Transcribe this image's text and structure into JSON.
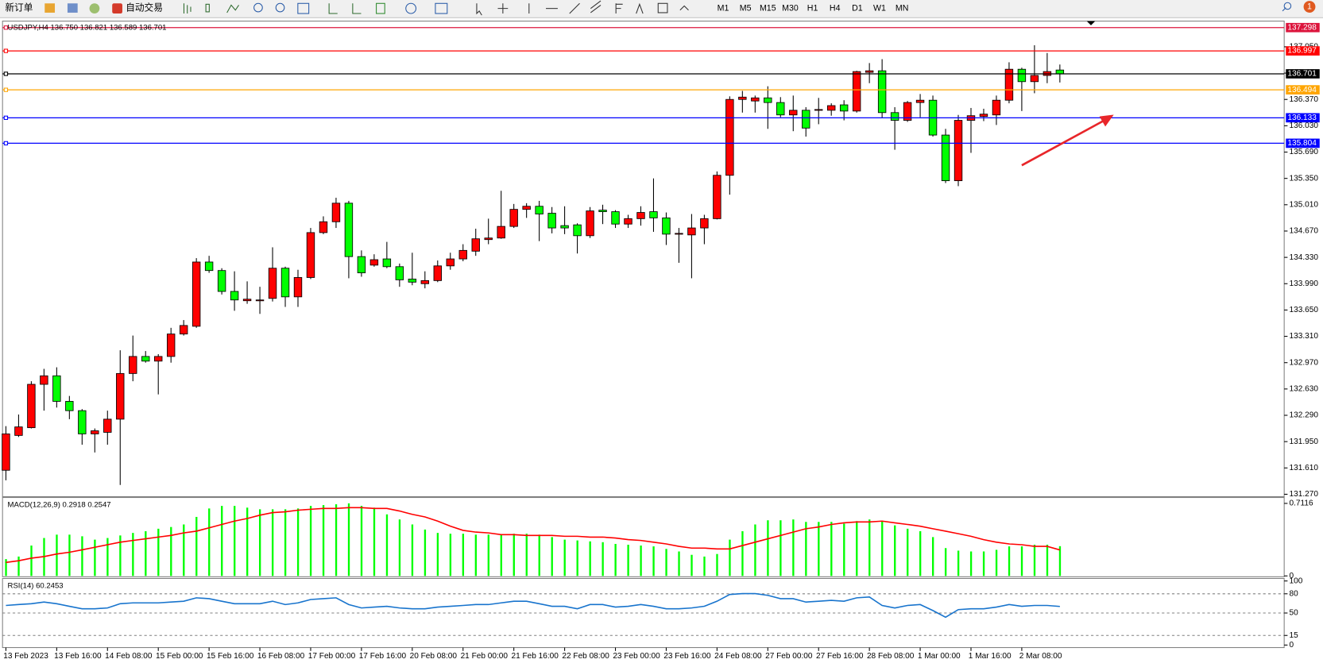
{
  "toolbar": {
    "new_order": "新订单",
    "auto_trade": "自动交易",
    "timeframes": [
      "M1",
      "M5",
      "M15",
      "M30",
      "H1",
      "H4",
      "D1",
      "W1",
      "MN"
    ],
    "badge": "1"
  },
  "chart_data": [
    {
      "type": "candlestick",
      "title": "USDJPY,H4  136.750 136.821 136.589 136.701",
      "categories": [
        "13 Feb 2023",
        null,
        null,
        null,
        "13 Feb 16:00",
        null,
        null,
        null,
        "14 Feb 08:00",
        null,
        null,
        null,
        "15 Feb 00:00",
        null,
        null,
        null,
        "15 Feb 16:00",
        null,
        null,
        null,
        "16 Feb 08:00",
        null,
        null,
        null,
        "17 Feb 00:00",
        null,
        null,
        null,
        "17 Feb 16:00",
        null,
        null,
        null,
        "20 Feb 08:00",
        null,
        null,
        null,
        "21 Feb 00:00",
        null,
        null,
        null,
        "21 Feb 16:00",
        null,
        null,
        null,
        "22 Feb 08:00",
        null,
        null,
        null,
        "23 Feb 00:00",
        null,
        null,
        null,
        "23 Feb 16:00",
        null,
        null,
        null,
        "24 Feb 08:00",
        null,
        null,
        null,
        "27 Feb 00:00",
        null,
        null,
        null,
        "27 Feb 16:00",
        null,
        null,
        null,
        "28 Feb 08:00",
        null,
        null,
        null,
        "1 Mar 00:00",
        null,
        null,
        null,
        "1 Mar 16:00",
        null,
        null,
        null,
        "2 Mar 08:00",
        null,
        null,
        null
      ],
      "open": [
        131.58,
        132.03,
        132.13,
        132.69,
        132.8,
        132.47,
        132.35,
        132.05,
        132.07,
        132.24,
        132.83,
        133.05,
        132.99,
        133.05,
        133.34,
        133.44,
        134.27,
        134.16,
        133.89,
        133.77,
        133.77,
        133.8,
        134.19,
        133.82,
        134.07,
        134.65,
        134.79,
        135.03,
        134.34,
        134.23,
        134.31,
        134.21,
        134.05,
        133.99,
        134.03,
        134.22,
        134.31,
        134.41,
        134.56,
        134.58,
        134.73,
        134.95,
        134.99,
        134.9,
        134.74,
        134.75,
        134.61,
        134.94,
        134.92,
        134.76,
        134.83,
        134.92,
        134.84,
        134.63,
        134.62,
        134.71,
        134.83,
        135.39,
        136.37,
        136.35,
        136.39,
        136.33,
        136.17,
        136.23,
        136.23,
        136.23,
        136.3,
        136.22,
        136.72,
        136.74,
        136.2,
        136.1,
        136.33,
        136.36,
        135.91,
        135.32,
        136.1,
        136.15,
        136.17,
        136.36,
        136.76,
        136.6,
        136.68,
        136.75
      ],
      "high": [
        132.15,
        132.3,
        132.73,
        132.89,
        132.91,
        132.54,
        132.37,
        132.12,
        132.35,
        133.13,
        133.32,
        133.12,
        133.08,
        133.42,
        133.52,
        134.32,
        134.35,
        134.19,
        134.15,
        134.02,
        133.95,
        134.46,
        134.21,
        134.17,
        134.71,
        134.86,
        135.1,
        135.06,
        134.42,
        134.37,
        134.53,
        134.25,
        134.39,
        134.15,
        134.29,
        134.39,
        134.5,
        134.7,
        134.83,
        135.19,
        135.02,
        135.03,
        135.06,
        134.98,
        134.99,
        134.77,
        134.98,
        135.01,
        134.94,
        134.88,
        134.99,
        135.35,
        134.91,
        134.71,
        134.89,
        134.88,
        135.44,
        136.41,
        136.48,
        136.42,
        136.54,
        136.4,
        136.42,
        136.27,
        136.39,
        136.32,
        136.36,
        136.74,
        136.84,
        136.89,
        136.27,
        136.35,
        136.44,
        136.42,
        135.99,
        136.17,
        136.26,
        136.25,
        136.42,
        136.85,
        136.78,
        137.07,
        136.97,
        136.821
      ],
      "low": [
        131.45,
        132.01,
        132.12,
        132.35,
        132.39,
        132.24,
        131.91,
        131.81,
        131.91,
        131.39,
        132.73,
        132.97,
        132.56,
        132.97,
        133.32,
        133.42,
        134.13,
        133.85,
        133.64,
        133.73,
        133.6,
        133.76,
        133.69,
        133.69,
        134.05,
        134.63,
        134.71,
        134.06,
        134.08,
        134.21,
        134.19,
        133.95,
        133.97,
        133.93,
        134.01,
        134.17,
        134.28,
        134.35,
        134.5,
        134.57,
        134.71,
        134.84,
        134.54,
        134.64,
        134.63,
        134.38,
        134.58,
        134.76,
        134.71,
        134.71,
        134.74,
        134.66,
        134.49,
        134.26,
        134.06,
        134.5,
        134.82,
        135.14,
        136.2,
        136.2,
        135.99,
        136.14,
        135.96,
        135.89,
        136.05,
        136.16,
        136.1,
        136.2,
        136.58,
        136.13,
        135.72,
        136.08,
        136.14,
        135.89,
        135.29,
        135.25,
        135.68,
        136.09,
        136.04,
        136.32,
        136.22,
        136.45,
        136.58,
        136.589
      ],
      "close": [
        132.05,
        132.14,
        132.69,
        132.8,
        132.47,
        132.35,
        132.05,
        132.09,
        132.24,
        132.83,
        133.05,
        132.99,
        133.05,
        133.34,
        133.45,
        134.27,
        134.16,
        133.89,
        133.78,
        133.79,
        133.78,
        134.19,
        133.82,
        134.07,
        134.65,
        134.79,
        135.03,
        134.34,
        134.13,
        134.3,
        134.21,
        134.04,
        134.01,
        134.03,
        134.22,
        134.31,
        134.42,
        134.57,
        134.58,
        134.73,
        134.95,
        134.99,
        134.89,
        134.71,
        134.71,
        134.61,
        134.93,
        134.92,
        134.76,
        134.83,
        134.91,
        134.84,
        134.63,
        134.64,
        134.71,
        134.83,
        135.39,
        136.37,
        136.4,
        136.39,
        136.33,
        136.17,
        136.23,
        136.0,
        136.24,
        136.29,
        136.22,
        136.73,
        136.74,
        136.2,
        136.1,
        136.33,
        136.36,
        135.91,
        135.32,
        136.1,
        136.16,
        136.18,
        136.36,
        136.76,
        136.6,
        136.68,
        136.73,
        136.701
      ],
      "up_color": "#ff0000",
      "down_color": "#00ff00",
      "ylim": [
        131.25,
        137.36
      ],
      "yticks": [
        {
          "value": 131.27,
          "label": "131.270"
        },
        {
          "value": 131.61,
          "label": "131.610"
        },
        {
          "value": 131.95,
          "label": "131.950"
        },
        {
          "value": 132.29,
          "label": "132.290"
        },
        {
          "value": 132.63,
          "label": "132.630"
        },
        {
          "value": 132.97,
          "label": "132.970"
        },
        {
          "value": 133.31,
          "label": "133.310"
        },
        {
          "value": 133.65,
          "label": "133.650"
        },
        {
          "value": 133.99,
          "label": "133.990"
        },
        {
          "value": 134.33,
          "label": "134.330"
        },
        {
          "value": 134.67,
          "label": "134.670"
        },
        {
          "value": 135.01,
          "label": "135.010"
        },
        {
          "value": 135.35,
          "label": "135.350"
        },
        {
          "value": 135.69,
          "label": "135.690"
        },
        {
          "value": 136.03,
          "label": "136.030"
        },
        {
          "value": 136.37,
          "label": "136.370"
        },
        {
          "value": 136.71,
          "label": "136.710"
        },
        {
          "value": 137.05,
          "label": "137.050"
        }
      ],
      "hlines": [
        {
          "value": 137.298,
          "color": "#dc143c"
        },
        {
          "value": 136.997,
          "color": "#ff0000"
        },
        {
          "value": 136.701,
          "color": "#000000"
        },
        {
          "value": 136.494,
          "color": "#ffa500"
        },
        {
          "value": 136.133,
          "color": "#0000ff"
        },
        {
          "value": 135.804,
          "color": "#0000ff"
        }
      ]
    },
    {
      "type": "macd",
      "title": "MACD(12,26,9) 0.2918 0.2547",
      "histogram": {
        "color": "#00ff00",
        "values": [
          0.165,
          0.19,
          0.298,
          0.372,
          0.405,
          0.405,
          0.389,
          0.356,
          0.372,
          0.397,
          0.422,
          0.439,
          0.463,
          0.48,
          0.505,
          0.579,
          0.662,
          0.687,
          0.687,
          0.67,
          0.654,
          0.654,
          0.654,
          0.662,
          0.687,
          0.695,
          0.703,
          0.712,
          0.687,
          0.67,
          0.604,
          0.554,
          0.505,
          0.455,
          0.422,
          0.414,
          0.414,
          0.405,
          0.405,
          0.405,
          0.414,
          0.414,
          0.405,
          0.381,
          0.356,
          0.348,
          0.339,
          0.331,
          0.314,
          0.306,
          0.298,
          0.29,
          0.265,
          0.24,
          0.207,
          0.19,
          0.215,
          0.356,
          0.439,
          0.505,
          0.546,
          0.546,
          0.554,
          0.53,
          0.53,
          0.53,
          0.513,
          0.538,
          0.554,
          0.538,
          0.496,
          0.463,
          0.439,
          0.381,
          0.273,
          0.248,
          0.24,
          0.24,
          0.256,
          0.29,
          0.29,
          0.306,
          0.306,
          0.292
        ]
      },
      "signal": {
        "color": "#ff0000",
        "values": [
          0.132,
          0.149,
          0.174,
          0.19,
          0.215,
          0.232,
          0.256,
          0.281,
          0.306,
          0.331,
          0.348,
          0.364,
          0.381,
          0.397,
          0.422,
          0.439,
          0.472,
          0.505,
          0.538,
          0.563,
          0.596,
          0.621,
          0.629,
          0.645,
          0.654,
          0.662,
          0.662,
          0.67,
          0.67,
          0.662,
          0.662,
          0.637,
          0.604,
          0.579,
          0.538,
          0.488,
          0.447,
          0.43,
          0.422,
          0.405,
          0.405,
          0.397,
          0.397,
          0.397,
          0.389,
          0.389,
          0.381,
          0.381,
          0.372,
          0.356,
          0.348,
          0.331,
          0.314,
          0.29,
          0.273,
          0.273,
          0.265,
          0.265,
          0.298,
          0.331,
          0.364,
          0.397,
          0.43,
          0.463,
          0.48,
          0.505,
          0.521,
          0.53,
          0.53,
          0.538,
          0.521,
          0.505,
          0.488,
          0.463,
          0.439,
          0.414,
          0.389,
          0.356,
          0.331,
          0.314,
          0.306,
          0.29,
          0.29,
          0.255
        ]
      },
      "ylim": [
        0,
        0.7116
      ],
      "yticks": [
        0,
        0.7116
      ]
    },
    {
      "type": "line",
      "title": "RSI(14) 60.2453",
      "color": "#1874cd",
      "values": [
        61.8,
        63.2,
        64.5,
        67.1,
        64.5,
        60.5,
        56.6,
        56.6,
        57.9,
        64.5,
        65.8,
        65.8,
        65.8,
        67.1,
        68.4,
        73.7,
        72.4,
        68.4,
        64.5,
        64.5,
        64.5,
        68.4,
        63.2,
        65.8,
        71.1,
        72.4,
        73.7,
        63.2,
        57.9,
        59.2,
        60.5,
        57.9,
        56.6,
        56.6,
        59.2,
        60.5,
        61.8,
        63.2,
        63.2,
        65.8,
        68.4,
        68.4,
        64.5,
        60.5,
        60.5,
        56.6,
        63.2,
        63.2,
        59.2,
        60.5,
        63.2,
        60.5,
        56.6,
        56.6,
        57.9,
        60.5,
        68.4,
        78.9,
        80.3,
        80.3,
        77.6,
        72.4,
        72.4,
        67.1,
        68.4,
        69.7,
        68.4,
        73.7,
        75.0,
        61.8,
        57.9,
        61.8,
        63.2,
        53.9,
        43.4,
        55.3,
        56.6,
        56.6,
        59.2,
        63.2,
        60.5,
        61.8,
        61.8,
        60.25
      ],
      "ylim": [
        0,
        100
      ],
      "yticks": [
        0,
        15,
        50,
        80,
        100
      ],
      "grid": "dashed"
    }
  ]
}
